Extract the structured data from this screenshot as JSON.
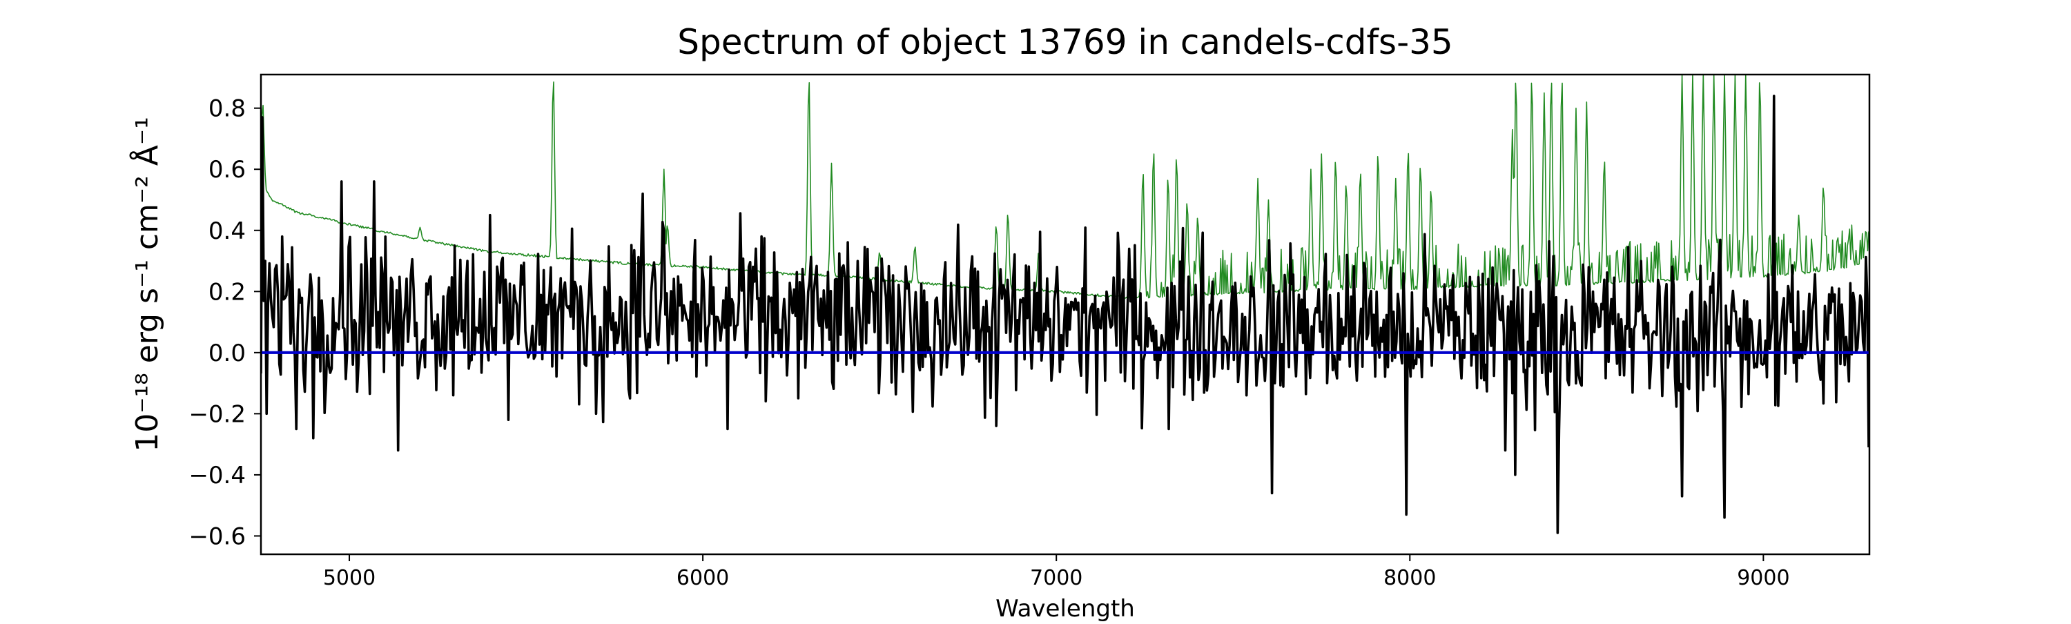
{
  "chart_data": {
    "type": "line",
    "title": "Spectrum of object 13769 in candels-cdfs-35",
    "xlabel": "Wavelength",
    "ylabel": "10⁻¹⁸ erg s⁻¹ cm⁻² Å⁻¹",
    "xlim": [
      4750,
      9300
    ],
    "ylim": [
      -0.66,
      0.91
    ],
    "x_ticks": [
      5000,
      6000,
      7000,
      8000,
      9000
    ],
    "x_tick_labels": [
      "5000",
      "6000",
      "7000",
      "8000",
      "9000"
    ],
    "y_ticks": [
      -0.6,
      -0.4,
      -0.2,
      0.0,
      0.2,
      0.4,
      0.6,
      0.8
    ],
    "y_tick_labels": [
      "−0.6",
      "−0.4",
      "−0.2",
      "0.0",
      "0.2",
      "0.4",
      "0.6",
      "0.8"
    ],
    "grid": false,
    "legend": "none",
    "series": [
      {
        "style": "thin green line",
        "color": "#228B22",
        "baseline": [
          [
            4750,
            0.56
          ],
          [
            4780,
            0.5
          ],
          [
            4850,
            0.46
          ],
          [
            5000,
            0.42
          ],
          [
            5200,
            0.37
          ],
          [
            5400,
            0.33
          ],
          [
            5600,
            0.31
          ],
          [
            5800,
            0.29
          ],
          [
            6000,
            0.28
          ],
          [
            6200,
            0.26
          ],
          [
            6400,
            0.25
          ],
          [
            6600,
            0.23
          ],
          [
            6800,
            0.21
          ],
          [
            7000,
            0.2
          ],
          [
            7200,
            0.18
          ],
          [
            7400,
            0.19
          ],
          [
            7600,
            0.2
          ],
          [
            7800,
            0.21
          ],
          [
            8000,
            0.21
          ],
          [
            8200,
            0.22
          ],
          [
            8400,
            0.22
          ],
          [
            8600,
            0.23
          ],
          [
            8800,
            0.24
          ],
          [
            9000,
            0.25
          ],
          [
            9200,
            0.27
          ],
          [
            9300,
            0.3
          ]
        ],
        "emission_lines": [
          [
            4755,
            0.82
          ],
          [
            5200,
            0.41
          ],
          [
            5577,
            0.91
          ],
          [
            5890,
            0.6
          ],
          [
            5900,
            0.42
          ],
          [
            6300,
            0.91
          ],
          [
            6364,
            0.62
          ],
          [
            6500,
            0.33
          ],
          [
            6600,
            0.35
          ],
          [
            6830,
            0.42
          ],
          [
            6863,
            0.46
          ],
          [
            6950,
            0.33
          ],
          [
            7245,
            0.6
          ],
          [
            7275,
            0.67
          ],
          [
            7316,
            0.58
          ],
          [
            7340,
            0.65
          ],
          [
            7370,
            0.5
          ],
          [
            7400,
            0.45
          ],
          [
            7570,
            0.57
          ],
          [
            7600,
            0.5
          ],
          [
            7720,
            0.6
          ],
          [
            7750,
            0.65
          ],
          [
            7790,
            0.64
          ],
          [
            7820,
            0.56
          ],
          [
            7860,
            0.6
          ],
          [
            7910,
            0.66
          ],
          [
            7960,
            0.57
          ],
          [
            7995,
            0.67
          ],
          [
            8030,
            0.62
          ],
          [
            8060,
            0.54
          ],
          [
            8290,
            0.73
          ],
          [
            8300,
            0.91
          ],
          [
            8345,
            0.91
          ],
          [
            8380,
            0.85
          ],
          [
            8400,
            0.91
          ],
          [
            8430,
            0.91
          ],
          [
            8470,
            0.8
          ],
          [
            8500,
            0.82
          ],
          [
            8550,
            0.64
          ],
          [
            8770,
            0.91
          ],
          [
            8800,
            0.91
          ],
          [
            8830,
            0.91
          ],
          [
            8860,
            0.91
          ],
          [
            8890,
            0.91
          ],
          [
            8920,
            0.91
          ],
          [
            8950,
            0.91
          ],
          [
            8990,
            0.91
          ],
          [
            9100,
            0.45
          ],
          [
            9170,
            0.55
          ],
          [
            9210,
            0.38
          ],
          [
            9290,
            0.4
          ]
        ]
      },
      {
        "style": "thick black line",
        "color": "#000000",
        "noise_amplitude": 0.15,
        "notable_points": [
          [
            4755,
            0.77
          ],
          [
            4765,
            -0.2
          ],
          [
            4810,
            0.38
          ],
          [
            4850,
            -0.25
          ],
          [
            4900,
            -0.28
          ],
          [
            4980,
            0.56
          ],
          [
            5070,
            0.56
          ],
          [
            5140,
            -0.32
          ],
          [
            5300,
            0.35
          ],
          [
            5400,
            0.45
          ],
          [
            5450,
            -0.22
          ],
          [
            5700,
            -0.2
          ],
          [
            5830,
            0.52
          ],
          [
            5890,
            0.4
          ],
          [
            6070,
            -0.25
          ],
          [
            6150,
            0.34
          ],
          [
            6830,
            -0.24
          ],
          [
            7320,
            -0.25
          ],
          [
            7610,
            -0.46
          ],
          [
            7990,
            -0.53
          ],
          [
            8270,
            -0.32
          ],
          [
            8300,
            -0.4
          ],
          [
            8420,
            -0.59
          ],
          [
            8770,
            -0.47
          ],
          [
            8890,
            -0.54
          ],
          [
            9030,
            0.84
          ],
          [
            9300,
            -0.31
          ]
        ]
      },
      {
        "style": "blue zero line",
        "color": "#0000CC",
        "values": [
          [
            4750,
            0.0
          ],
          [
            9300,
            0.0
          ]
        ]
      }
    ]
  }
}
